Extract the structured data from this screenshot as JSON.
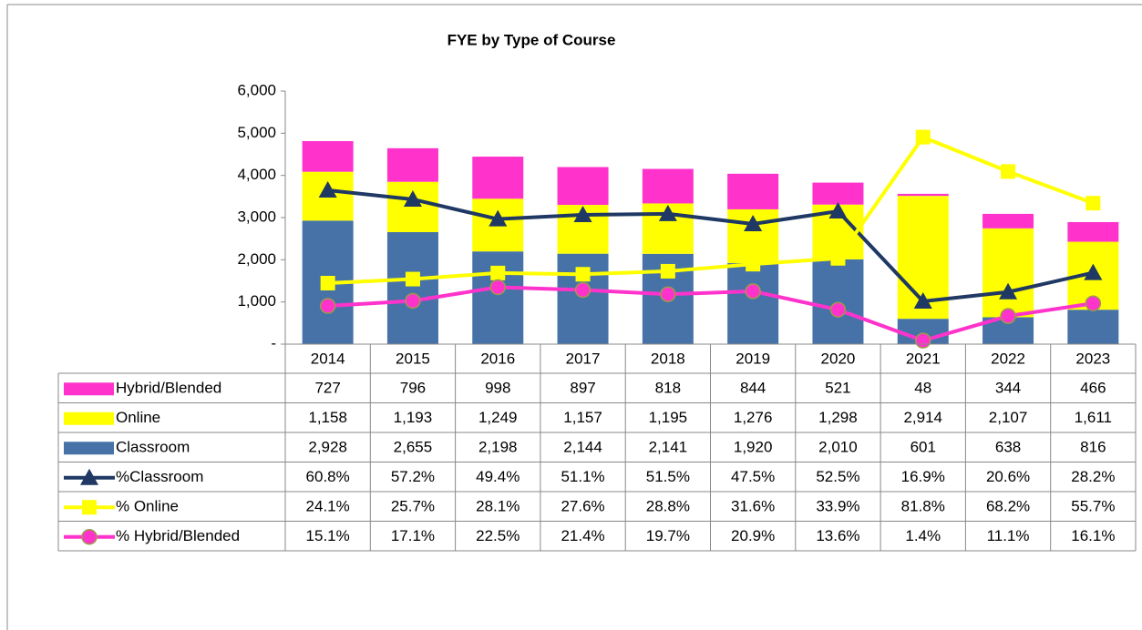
{
  "chart_data": {
    "type": "bar",
    "title": "FYE by Type of Course",
    "categories": [
      "2014",
      "2015",
      "2016",
      "2017",
      "2018",
      "2019",
      "2020",
      "2021",
      "2022",
      "2023"
    ],
    "ylim": [
      0,
      6000
    ],
    "yticks": [
      {
        "value": 0,
        "label": "-"
      },
      {
        "value": 1000,
        "label": "1,000"
      },
      {
        "value": 2000,
        "label": "2,000"
      },
      {
        "value": 3000,
        "label": "3,000"
      },
      {
        "value": 4000,
        "label": "4,000"
      },
      {
        "value": 5000,
        "label": "5,000"
      },
      {
        "value": 6000,
        "label": "6,000"
      }
    ],
    "y2lim": [
      0,
      100
    ],
    "series": [
      {
        "name": "Hybrid/Blended",
        "type": "bar",
        "color": "#ff33cc",
        "values": [
          727,
          796,
          998,
          897,
          818,
          844,
          521,
          48,
          344,
          466
        ],
        "value_labels": [
          "727",
          "796",
          "998",
          "897",
          "818",
          "844",
          "521",
          "48",
          "344",
          "466"
        ]
      },
      {
        "name": "Online",
        "type": "bar",
        "color": "#ffff00",
        "values": [
          1158,
          1193,
          1249,
          1157,
          1195,
          1276,
          1298,
          2914,
          2107,
          1611
        ],
        "value_labels": [
          "1,158",
          "1,193",
          "1,249",
          "1,157",
          "1,195",
          "1,276",
          "1,298",
          "2,914",
          "2,107",
          "1,611"
        ]
      },
      {
        "name": "Classroom",
        "type": "bar",
        "color": "#4672a8",
        "values": [
          2928,
          2655,
          2198,
          2144,
          2141,
          1920,
          2010,
          601,
          638,
          816
        ],
        "value_labels": [
          "2,928",
          "2,655",
          "2,198",
          "2,144",
          "2,141",
          "1,920",
          "2,010",
          "601",
          "638",
          "816"
        ]
      },
      {
        "name": "%Classroom",
        "type": "line",
        "axis": "y2",
        "color": "#1f3864",
        "marker": "triangle",
        "values": [
          60.8,
          57.2,
          49.4,
          51.1,
          51.5,
          47.5,
          52.5,
          16.9,
          20.6,
          28.2
        ],
        "value_labels": [
          "60.8%",
          "57.2%",
          "49.4%",
          "51.1%",
          "51.5%",
          "47.5%",
          "52.5%",
          "16.9%",
          "20.6%",
          "28.2%"
        ]
      },
      {
        "name": "% Online",
        "type": "line",
        "axis": "y2",
        "color": "#ffff00",
        "marker": "square",
        "values": [
          24.1,
          25.7,
          28.1,
          27.6,
          28.8,
          31.6,
          33.9,
          81.8,
          68.2,
          55.7
        ],
        "value_labels": [
          "24.1%",
          "25.7%",
          "28.1%",
          "27.6%",
          "28.8%",
          "31.6%",
          "33.9%",
          "81.8%",
          "68.2%",
          "55.7%"
        ]
      },
      {
        "name": "% Hybrid/Blended",
        "type": "line",
        "axis": "y2",
        "color": "#ff33cc",
        "marker": "circle",
        "values": [
          15.1,
          17.1,
          22.5,
          21.4,
          19.7,
          20.9,
          13.6,
          1.4,
          11.1,
          16.1
        ],
        "value_labels": [
          "15.1%",
          "17.1%",
          "22.5%",
          "21.4%",
          "19.7%",
          "20.9%",
          "13.6%",
          "1.4%",
          "11.1%",
          "16.1%"
        ]
      }
    ]
  }
}
